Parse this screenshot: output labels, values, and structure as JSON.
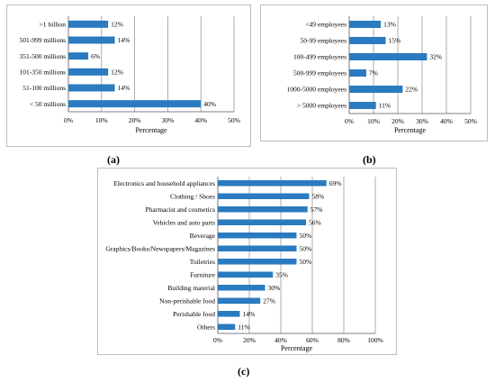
{
  "accent": "#2a7bbf",
  "figure_labels": {
    "a": "(a)",
    "b": "(b)",
    "c": "(c)"
  },
  "chart_data": [
    {
      "type": "bar",
      "orientation": "horizontal",
      "categories": [
        ">1 billion",
        "501-999 millions",
        "351-500 millions",
        "101-350 millions",
        "51-100 millions",
        "< 50 millions"
      ],
      "values": [
        12,
        14,
        6,
        12,
        14,
        40
      ],
      "value_labels": [
        "12%",
        "14%",
        "6%",
        "12%",
        "14%",
        "40%"
      ],
      "x_ticks": [
        "0%",
        "10%",
        "20%",
        "30%",
        "40%",
        "50%"
      ],
      "xlabel": "Percentage",
      "xlim": [
        0,
        50
      ],
      "grid": "vertical"
    },
    {
      "type": "bar",
      "orientation": "horizontal",
      "categories": [
        "<49 employees",
        "50-99 employees",
        "100-499 employees",
        "500-999 employees",
        "1000-5000 employees",
        "> 5000 employees"
      ],
      "values": [
        13,
        15,
        32,
        7,
        22,
        11
      ],
      "value_labels": [
        "13%",
        "15%",
        "32%",
        "7%",
        "22%",
        "11%"
      ],
      "x_ticks": [
        "0%",
        "10%",
        "20%",
        "30%",
        "40%",
        "50%"
      ],
      "xlabel": "Percentage",
      "xlim": [
        0,
        50
      ],
      "grid": "vertical"
    },
    {
      "type": "bar",
      "orientation": "horizontal",
      "categories": [
        "Electronics and household appliances",
        "Clothing / Shoes",
        "Pharmacist and cosmetics",
        "Vehicles and auto parts",
        "Beverage",
        "Graphics/Books/Newspapers/Magazines",
        "Toiletries",
        "Furniture",
        "Building material",
        "Non-perishable food",
        "Perishable food",
        "Others"
      ],
      "values": [
        69,
        58,
        57,
        56,
        50,
        50,
        50,
        35,
        30,
        27,
        14,
        11
      ],
      "value_labels": [
        "69%",
        "58%",
        "57%",
        "56%",
        "50%",
        "50%",
        "50%",
        "35%",
        "30%",
        "27%",
        "14%",
        "11%"
      ],
      "x_ticks": [
        "0%",
        "20%",
        "40%",
        "60%",
        "80%",
        "100%"
      ],
      "xlabel": "Percentage",
      "xlim": [
        0,
        100
      ],
      "grid": "vertical"
    }
  ]
}
